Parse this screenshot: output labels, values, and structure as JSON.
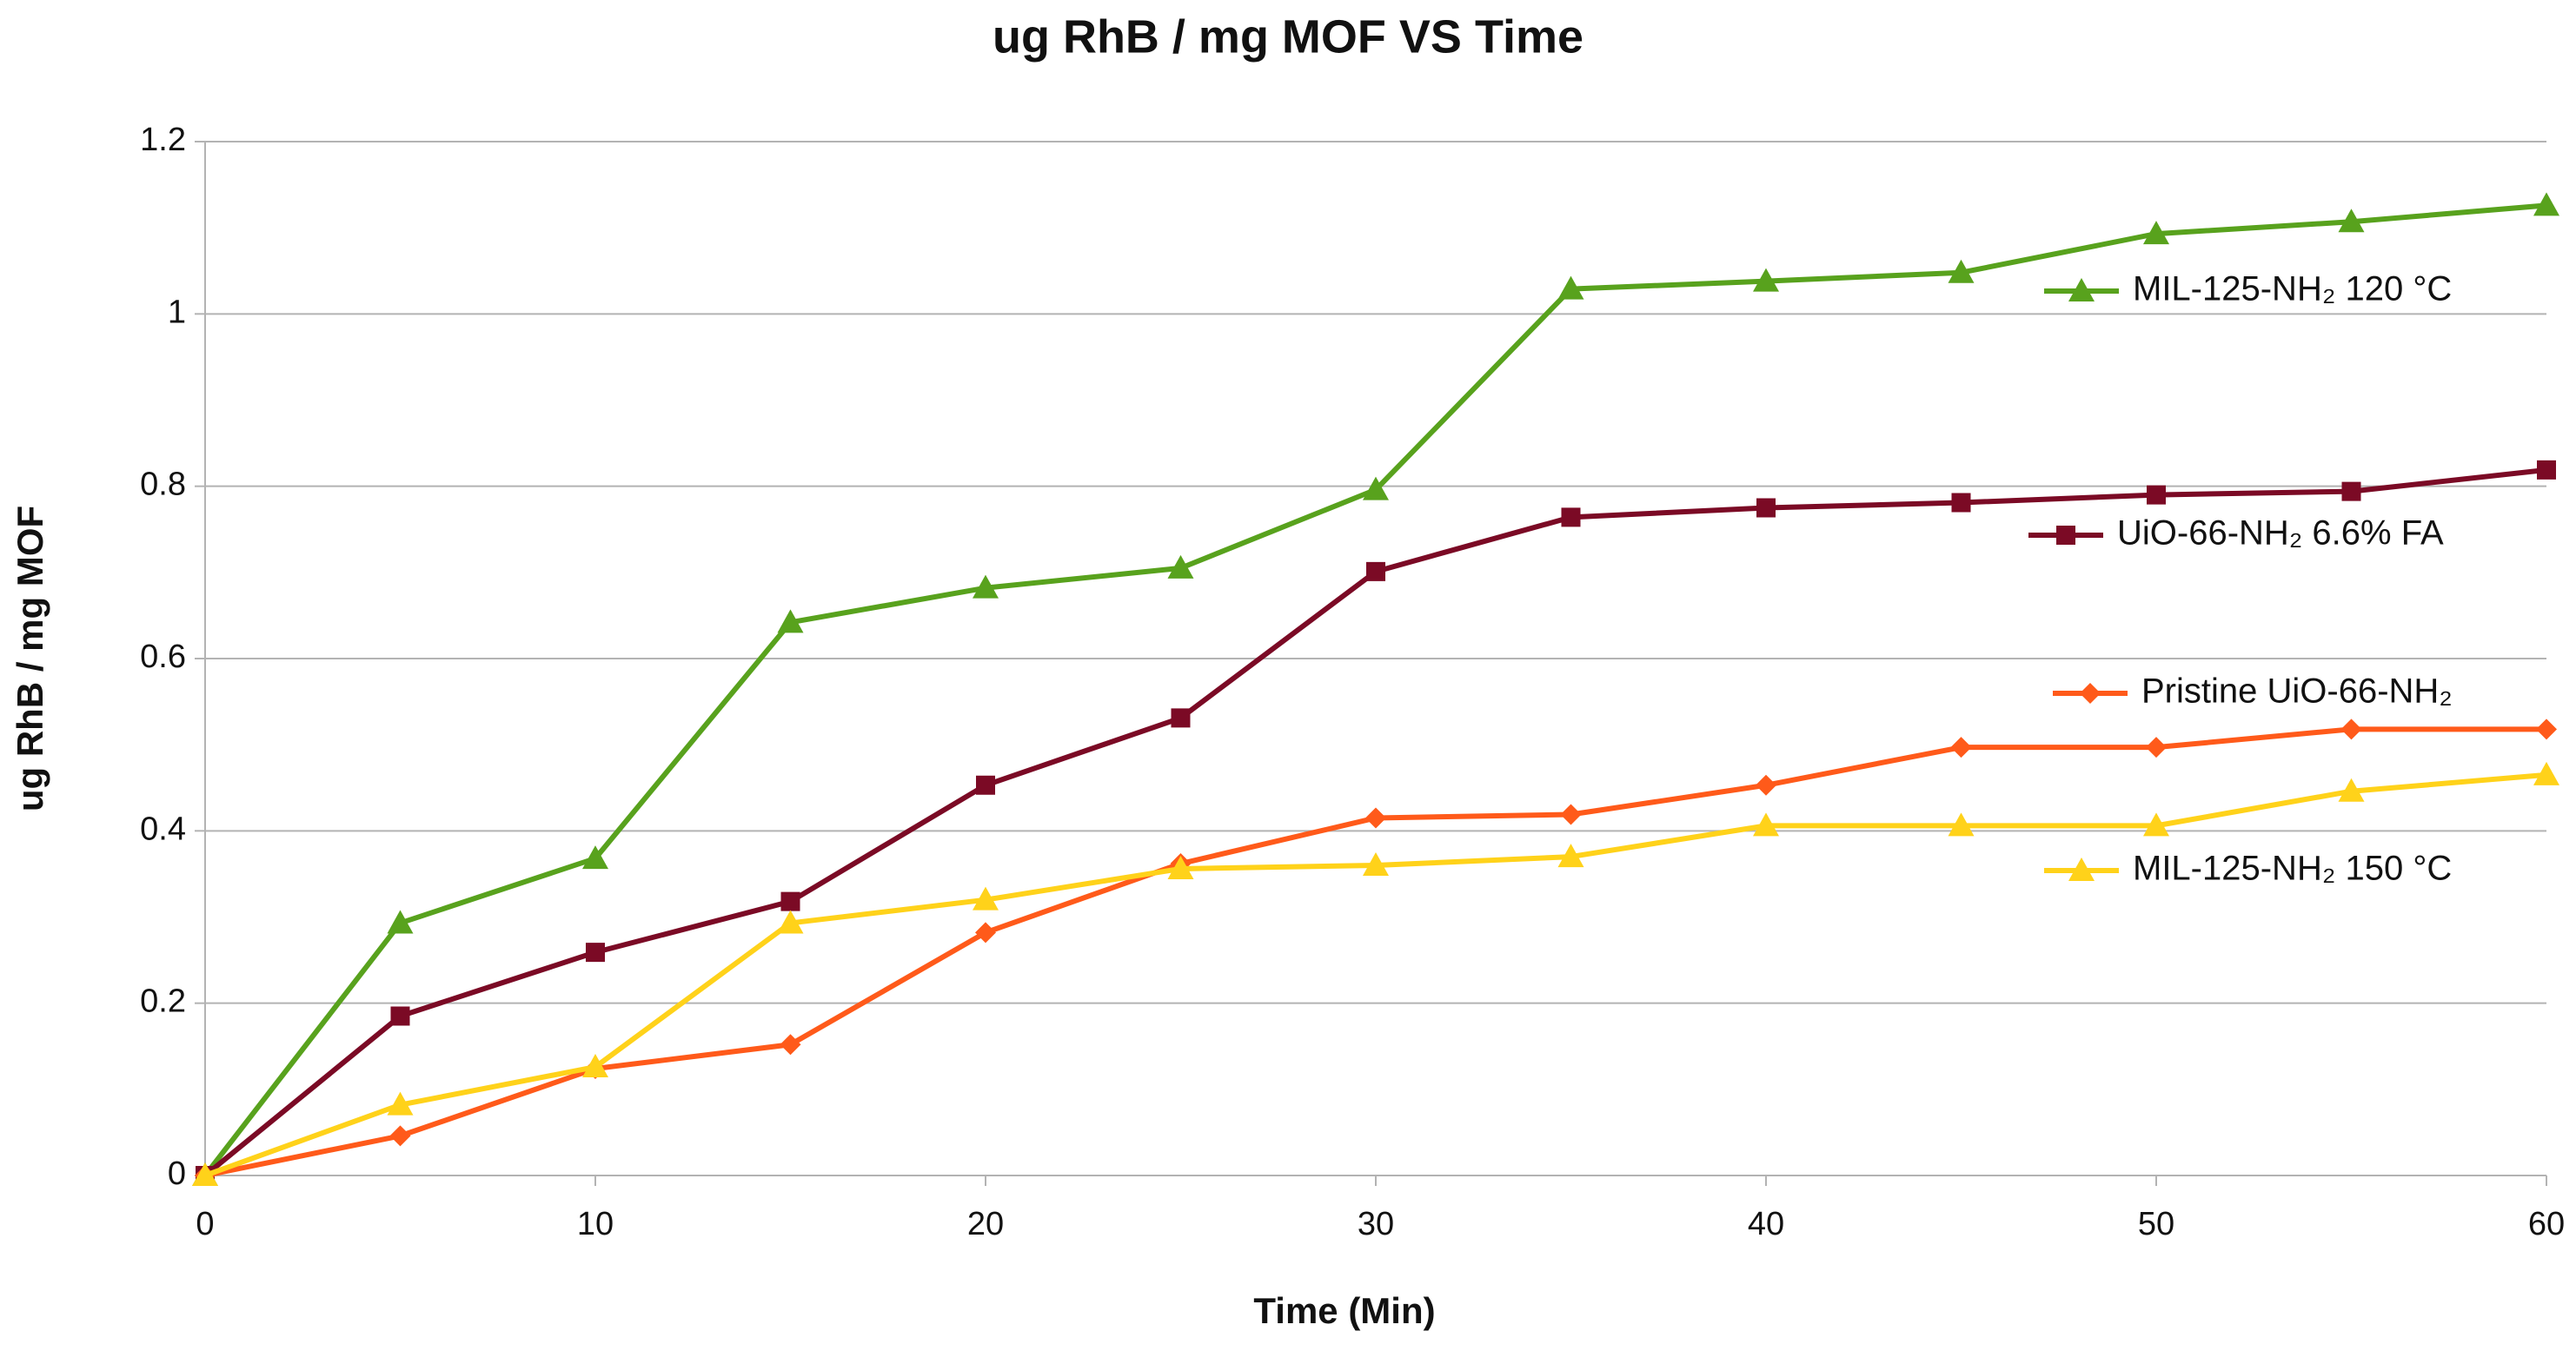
{
  "chart_data": {
    "type": "line",
    "title": "ug RhB / mg MOF VS Time",
    "x_label": "Time (Min)",
    "y_label": "ug RhB / mg MOF",
    "x": [
      0,
      5,
      10,
      15,
      20,
      25,
      30,
      35,
      40,
      45,
      50,
      55,
      60
    ],
    "xlim": [
      0,
      60
    ],
    "xticks": [
      0,
      10,
      20,
      30,
      40,
      50,
      60
    ],
    "ylim": [
      0,
      1.2
    ],
    "yticks": [
      0,
      0.2,
      0.4,
      0.6,
      0.8,
      1,
      1.2
    ],
    "grid": true,
    "series": [
      {
        "name": "MIL-125-NH₂ 120 °C",
        "color": "#58a21d",
        "marker": "triangle",
        "values": [
          0,
          0.293,
          0.368,
          0.642,
          0.682,
          0.705,
          0.796,
          1.029,
          1.038,
          1.048,
          1.093,
          1.107,
          1.126
        ]
      },
      {
        "name": "UiO-66-NH₂ 6.6% FA",
        "color": "#7b0a25",
        "marker": "square",
        "values": [
          0,
          0.185,
          0.259,
          0.318,
          0.453,
          0.531,
          0.701,
          0.764,
          0.775,
          0.781,
          0.79,
          0.794,
          0.819
        ]
      },
      {
        "name": "Pristine UiO-66-NH₂",
        "color": "#ff5a1a",
        "marker": "diamond",
        "values": [
          0,
          0.046,
          0.124,
          0.152,
          0.282,
          0.362,
          0.415,
          0.419,
          0.453,
          0.497,
          0.497,
          0.518,
          0.518
        ]
      },
      {
        "name": "MIL-125-NH₂ 150 °C",
        "color": "#ffd21a",
        "marker": "triangle",
        "values": [
          0,
          0.082,
          0.126,
          0.293,
          0.32,
          0.356,
          0.36,
          0.37,
          0.406,
          0.406,
          0.406,
          0.446,
          0.465
        ]
      }
    ]
  }
}
